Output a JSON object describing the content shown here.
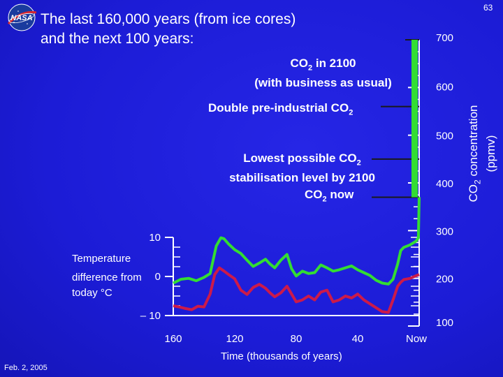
{
  "slide": {
    "number": "63",
    "title_line1": "The last 160,000 years (from ice cores)",
    "title_line2": "and the next 100 years:",
    "date": "Feb. 2, 2005",
    "logo_text": "NASA"
  },
  "annotations": {
    "co2_2100_line1_pre": "CO",
    "co2_2100_line1_sub": "2",
    "co2_2100_line1_post": " in 2100",
    "co2_2100_line2": "(with business as usual)",
    "double_pre": "Double pre-industrial CO",
    "double_sub": "2",
    "lowest_line1_pre": "Lowest possible CO",
    "lowest_line1_sub": "2",
    "lowest_line2": "stabilisation level by 2100",
    "now_pre": "CO",
    "now_sub": "2",
    "now_post": " now"
  },
  "left_axis": {
    "title_line1": "Temperature",
    "title_line2": "difference from",
    "title_line3": "today °C",
    "ticks": [
      "10",
      "0",
      "– 10"
    ]
  },
  "right_axis": {
    "title_pre": "CO",
    "title_sub": "2",
    "title_post": " concentration",
    "title_line2": "(ppmv)",
    "ticks": [
      "700",
      "600",
      "500",
      "400",
      "300",
      "200",
      "100"
    ]
  },
  "x_axis": {
    "title_pre": "Time (thousands of years",
    "title_post": ")",
    "ticks": [
      "160",
      "120",
      "80",
      "40",
      "Now"
    ]
  },
  "chart_data": {
    "type": "line",
    "title": "The last 160,000 years (from ice cores) and the next 100 years",
    "xlabel": "Time (thousands of years)",
    "ylabel_left": "Temperature difference from today °C",
    "ylabel_right": "CO2 concentration (ppmv)",
    "xlim": [
      160,
      0
    ],
    "ylim_co2": [
      100,
      700
    ],
    "ylim_temp": [
      -10,
      10
    ],
    "series": [
      {
        "name": "CO2 concentration",
        "color": "#33dd33",
        "axis": "right",
        "x": [
          160,
          155,
          150,
          145,
          140,
          136,
          132,
          129,
          127,
          124,
          120,
          116,
          112,
          108,
          104,
          100,
          97,
          94,
          90,
          86,
          83,
          80,
          76,
          72,
          68,
          64,
          60,
          56,
          52,
          48,
          44,
          40,
          36,
          32,
          28,
          24,
          20,
          17,
          14,
          12,
          10,
          6,
          2,
          0.5,
          0
        ],
        "values": [
          190,
          198,
          200,
          195,
          202,
          210,
          268,
          285,
          283,
          272,
          260,
          252,
          238,
          225,
          232,
          240,
          230,
          222,
          238,
          250,
          220,
          205,
          215,
          210,
          212,
          228,
          222,
          215,
          218,
          222,
          226,
          218,
          212,
          206,
          196,
          190,
          188,
          198,
          230,
          258,
          265,
          270,
          278,
          285,
          370
        ]
      },
      {
        "name": "Temperature",
        "color": "#cc1a4a",
        "axis": "left",
        "x": [
          160,
          156,
          152,
          148,
          144,
          140,
          136,
          133,
          130,
          127,
          124,
          120,
          116,
          112,
          108,
          104,
          100,
          97,
          94,
          90,
          86,
          83,
          80,
          76,
          72,
          68,
          64,
          60,
          56,
          52,
          48,
          44,
          40,
          36,
          32,
          28,
          24,
          20,
          17,
          14,
          12,
          10,
          6,
          2,
          0
        ],
        "values": [
          -7.5,
          -7.8,
          -8.2,
          -8.5,
          -7.6,
          -7.8,
          -4.5,
          0.5,
          2.2,
          1.4,
          0.5,
          -0.6,
          -3.5,
          -4.6,
          -2.8,
          -2.0,
          -3.0,
          -4.2,
          -5.2,
          -4.2,
          -2.5,
          -4.5,
          -6.5,
          -6.0,
          -5.0,
          -6.0,
          -4.0,
          -3.5,
          -6.5,
          -6.0,
          -5.0,
          -5.5,
          -4.5,
          -6.0,
          -7.0,
          -8.0,
          -9.0,
          -9.2,
          -6.0,
          -2.5,
          -1.5,
          -0.8,
          -0.5,
          0.2,
          0.5
        ]
      }
    ],
    "reference_levels": [
      {
        "label": "CO2 in 2100 (with business as usual)",
        "value": 700
      },
      {
        "label": "Double pre-industrial CO2",
        "value": 560
      },
      {
        "label": "Lowest possible CO2 stabilisation level by 2100",
        "value": 450
      },
      {
        "label": "CO2 now",
        "value": 370
      }
    ]
  }
}
